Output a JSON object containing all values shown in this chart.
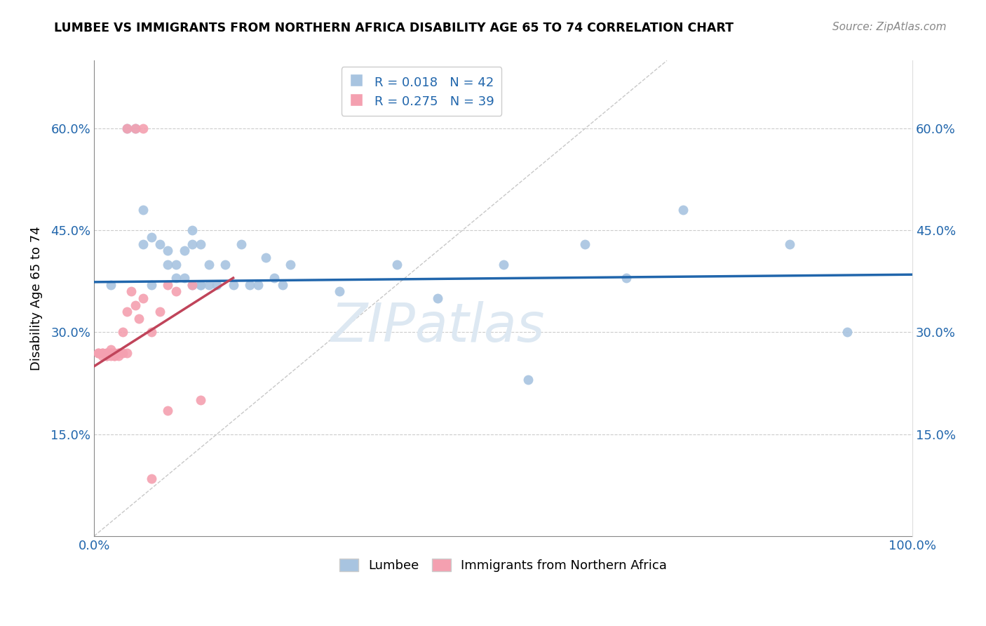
{
  "title": "LUMBEE VS IMMIGRANTS FROM NORTHERN AFRICA DISABILITY AGE 65 TO 74 CORRELATION CHART",
  "source": "Source: ZipAtlas.com",
  "ylabel": "Disability Age 65 to 74",
  "lumbee_R": 0.018,
  "lumbee_N": 42,
  "immigrant_R": 0.275,
  "immigrant_N": 39,
  "xlim": [
    0.0,
    1.0
  ],
  "ylim": [
    0.0,
    0.7
  ],
  "yticks": [
    0.15,
    0.3,
    0.45,
    0.6
  ],
  "ytick_labels": [
    "15.0%",
    "30.0%",
    "45.0%",
    "60.0%"
  ],
  "xticks": [
    0.0,
    0.25,
    0.5,
    0.75,
    1.0
  ],
  "xtick_labels": [
    "0.0%",
    "",
    "",
    "",
    "100.0%"
  ],
  "color_lumbee": "#a8c4e0",
  "color_immigrant": "#f4a0b0",
  "color_trend_lumbee": "#2166ac",
  "color_trend_immigrant": "#c0445a",
  "color_diagonal": "#c8c8c8",
  "lumbee_x": [
    0.02,
    0.04,
    0.05,
    0.06,
    0.06,
    0.07,
    0.07,
    0.08,
    0.09,
    0.09,
    0.1,
    0.1,
    0.11,
    0.11,
    0.12,
    0.12,
    0.12,
    0.13,
    0.13,
    0.13,
    0.14,
    0.14,
    0.15,
    0.16,
    0.17,
    0.18,
    0.19,
    0.2,
    0.21,
    0.22,
    0.23,
    0.24,
    0.3,
    0.37,
    0.42,
    0.5,
    0.53,
    0.6,
    0.65,
    0.72,
    0.85,
    0.92
  ],
  "lumbee_y": [
    0.37,
    0.6,
    0.6,
    0.43,
    0.48,
    0.44,
    0.37,
    0.43,
    0.42,
    0.4,
    0.4,
    0.38,
    0.42,
    0.38,
    0.45,
    0.43,
    0.37,
    0.37,
    0.43,
    0.37,
    0.4,
    0.37,
    0.37,
    0.4,
    0.37,
    0.43,
    0.37,
    0.37,
    0.41,
    0.38,
    0.37,
    0.4,
    0.36,
    0.4,
    0.35,
    0.4,
    0.23,
    0.43,
    0.38,
    0.48,
    0.43,
    0.3
  ],
  "immigrant_x": [
    0.005,
    0.005,
    0.01,
    0.01,
    0.01,
    0.015,
    0.015,
    0.015,
    0.015,
    0.02,
    0.02,
    0.02,
    0.02,
    0.025,
    0.025,
    0.025,
    0.025,
    0.03,
    0.03,
    0.03,
    0.035,
    0.035,
    0.04,
    0.04,
    0.045,
    0.05,
    0.055,
    0.06,
    0.07,
    0.08,
    0.09,
    0.1,
    0.12,
    0.13,
    0.04,
    0.05,
    0.06,
    0.09,
    0.07
  ],
  "immigrant_y": [
    0.27,
    0.27,
    0.27,
    0.27,
    0.265,
    0.27,
    0.27,
    0.265,
    0.265,
    0.27,
    0.27,
    0.275,
    0.265,
    0.27,
    0.27,
    0.265,
    0.265,
    0.27,
    0.27,
    0.265,
    0.3,
    0.27,
    0.33,
    0.27,
    0.36,
    0.34,
    0.32,
    0.35,
    0.3,
    0.33,
    0.37,
    0.36,
    0.37,
    0.2,
    0.6,
    0.6,
    0.6,
    0.185,
    0.085
  ],
  "trend_lumbee_x0": 0.0,
  "trend_lumbee_x1": 1.0,
  "trend_lumbee_y0": 0.374,
  "trend_lumbee_y1": 0.385,
  "trend_immigrant_x0": 0.0,
  "trend_immigrant_x1": 0.17,
  "trend_immigrant_y0": 0.25,
  "trend_immigrant_y1": 0.38,
  "watermark": "ZIPatlas",
  "watermark_color": "#dde8f2",
  "legend_color": "#2166ac"
}
